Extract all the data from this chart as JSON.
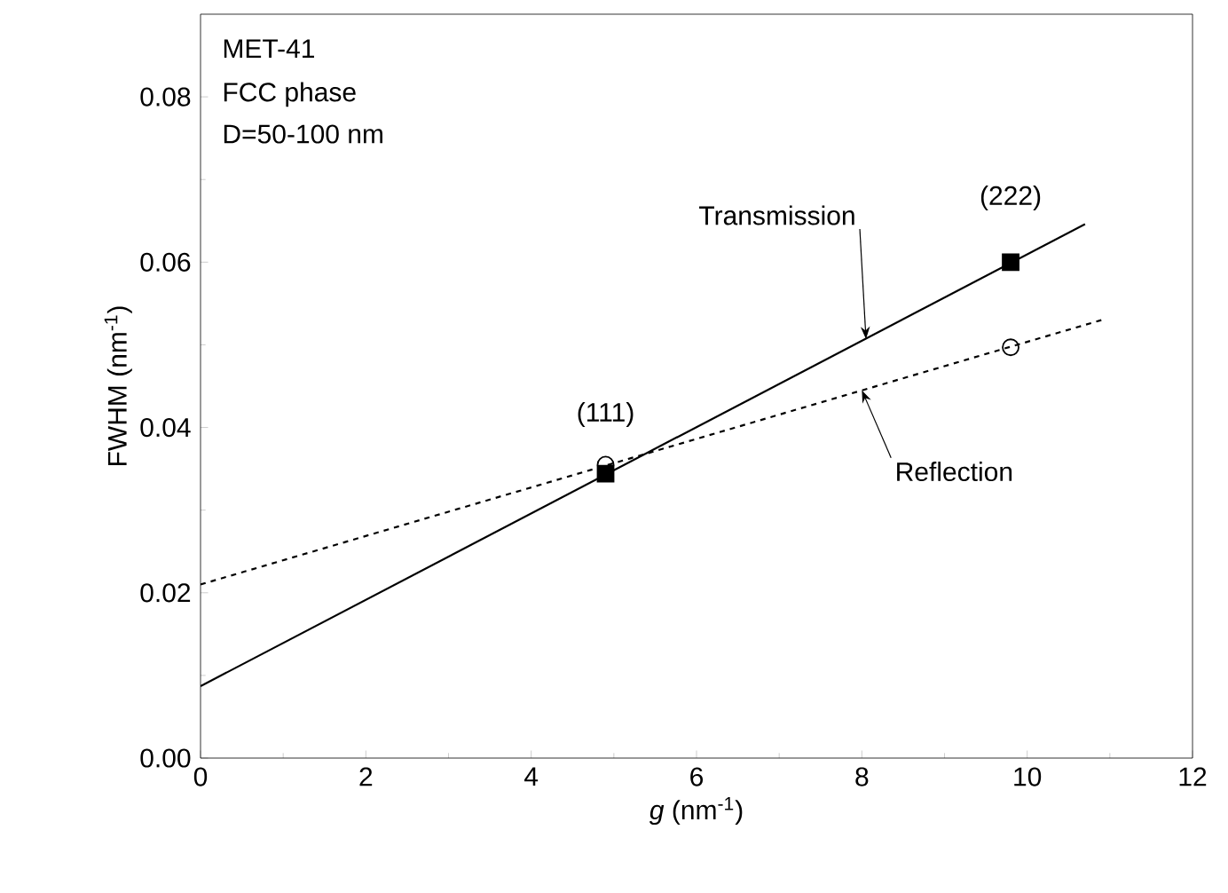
{
  "chart_data": {
    "type": "scatter",
    "xlabel": "*g* (nm$^{-1}$)",
    "ylabel": "FWHM (nm$^{-1}$)",
    "xlim": [
      0,
      12
    ],
    "ylim": [
      0,
      0.09
    ],
    "xticks": [
      0,
      2,
      4,
      6,
      8,
      10,
      12
    ],
    "yticks": [
      {
        "value": 0,
        "label": "0.00"
      },
      {
        "value": 0.02,
        "label": "0.02"
      },
      {
        "value": 0.04,
        "label": "0.04"
      },
      {
        "value": 0.06,
        "label": "0.06"
      },
      {
        "value": 0.08,
        "label": "0.08"
      }
    ],
    "grid": false,
    "series": [
      {
        "type": "line",
        "color": "#000000",
        "x": [
          0,
          10.7
        ],
        "values": [
          0.0087,
          0.0646
        ],
        "line_style": "solid",
        "marker": "none"
      },
      {
        "type": "line",
        "color": "#000000",
        "x": [
          0,
          10.9
        ],
        "values": [
          0.021,
          0.053
        ],
        "line_style": "dashed",
        "marker": "none"
      },
      {
        "color": "#000000",
        "x": [
          4.9,
          9.8
        ],
        "values": [
          0.0344,
          0.06
        ],
        "marker": "square"
      },
      {
        "color": "#000000",
        "x": [
          4.9,
          9.8
        ],
        "values": [
          0.0355,
          0.0497
        ],
        "marker": "circle"
      }
    ],
    "annotations": [
      "MET-41",
      "FCC phase",
      "D=50-100 nm",
      {
        "text": "(111)",
        "x": 4.9,
        "y": 0.0355
      },
      {
        "text": "(222)",
        "x": 9.8,
        "y": 0.06
      },
      {
        "text": "Transmission",
        "x": 8.05,
        "y": 0.0507
      },
      {
        "text": "Reflection",
        "x": 8.0,
        "y": 0.0445
      }
    ]
  }
}
